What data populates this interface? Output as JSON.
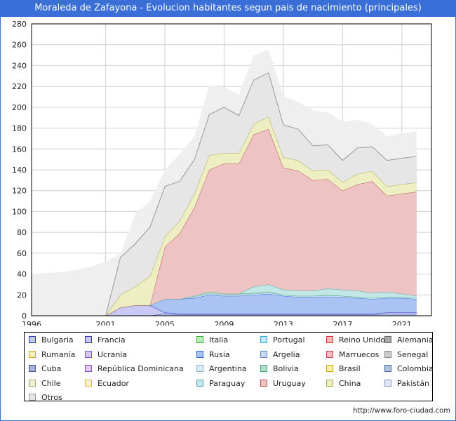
{
  "title": "Moraleda de Zafayona - Evolucion habitantes segun pais de nacimiento (principales)",
  "footer": "http://www.foro-ciudad.com",
  "chart_data": {
    "type": "area",
    "stacked": true,
    "x": [
      1996,
      1998,
      1999,
      2000,
      2001,
      2002,
      2003,
      2004,
      2005,
      2006,
      2007,
      2008,
      2009,
      2010,
      2011,
      2012,
      2013,
      2014,
      2015,
      2016,
      2017,
      2018,
      2019,
      2020,
      2021,
      2022
    ],
    "xticks": [
      1996,
      2001,
      2005,
      2009,
      2013,
      2017,
      2021
    ],
    "yticks": [
      0,
      20,
      40,
      60,
      80,
      100,
      120,
      140,
      160,
      180,
      200,
      220,
      240,
      260,
      280
    ],
    "xlim": [
      1996,
      2023
    ],
    "ylim": [
      0,
      280
    ],
    "grid": true,
    "legend_position": "bottom",
    "total_line_color": "#efefef",
    "total": [
      40,
      42,
      44,
      47,
      52,
      59,
      98,
      110,
      140,
      155,
      172,
      221,
      219,
      212,
      250,
      255,
      211,
      205,
      197,
      195,
      186,
      188,
      184,
      172,
      175,
      177
    ],
    "series": [
      {
        "name": "Bulgaria",
        "color": "#b9cbee",
        "stroke": "#3333bb",
        "values": [
          0,
          0,
          0,
          0,
          0,
          0,
          0,
          0,
          2,
          1,
          1,
          1,
          1,
          1,
          1,
          1,
          1,
          1,
          1,
          1,
          1,
          1,
          1,
          2,
          2,
          2
        ]
      },
      {
        "name": "Francia",
        "color": "#c9c9f3",
        "stroke": "#3333bb",
        "values": [
          0,
          0,
          0,
          0,
          0,
          8,
          10,
          10,
          1,
          1,
          1,
          1,
          1,
          1,
          1,
          1,
          1,
          1,
          1,
          1,
          1,
          1,
          1,
          1,
          1,
          1
        ]
      },
      {
        "name": "Italia",
        "color": "#b9eeb9",
        "stroke": "#33aa33",
        "values": [
          0,
          0,
          0,
          0,
          0,
          0,
          0,
          0,
          0,
          0,
          0,
          0,
          0,
          0,
          0,
          0,
          0,
          0,
          0,
          0,
          0,
          0,
          0,
          0,
          0,
          0
        ]
      },
      {
        "name": "Portugal",
        "color": "#c3e9f5",
        "stroke": "#33aacc",
        "values": [
          0,
          0,
          0,
          0,
          0,
          0,
          0,
          0,
          0,
          0,
          0,
          0,
          0,
          0,
          0,
          0,
          0,
          0,
          0,
          0,
          0,
          0,
          0,
          0,
          0,
          0
        ]
      },
      {
        "name": "Reino Unido",
        "color": "#f3b9b9",
        "stroke": "#cc3333",
        "values": [
          0,
          0,
          0,
          0,
          0,
          0,
          0,
          0,
          0,
          0,
          0,
          0,
          0,
          0,
          0,
          0,
          0,
          0,
          0,
          0,
          0,
          0,
          0,
          0,
          0,
          0
        ]
      },
      {
        "name": "Alemania",
        "color": "#aaaaaa",
        "stroke": "#666666",
        "values": [
          0,
          0,
          0,
          0,
          0,
          0,
          0,
          0,
          0,
          0,
          0,
          0,
          0,
          0,
          0,
          0,
          0,
          0,
          0,
          0,
          0,
          0,
          0,
          0,
          0,
          0
        ]
      },
      {
        "name": "Rumanía",
        "color": "#f8f0b9",
        "stroke": "#ccaa33",
        "values": [
          0,
          0,
          0,
          0,
          0,
          0,
          0,
          0,
          0,
          0,
          0,
          0,
          0,
          0,
          0,
          0,
          0,
          0,
          0,
          0,
          0,
          0,
          0,
          0,
          0,
          0
        ]
      },
      {
        "name": "Ucrania",
        "color": "#d5c9f3",
        "stroke": "#7755cc",
        "values": [
          0,
          0,
          0,
          0,
          0,
          0,
          0,
          0,
          0,
          0,
          0,
          0,
          0,
          0,
          0,
          0,
          0,
          0,
          0,
          0,
          0,
          0,
          0,
          0,
          0,
          0
        ]
      },
      {
        "name": "Rusia",
        "color": "#aac3f3",
        "stroke": "#3366dd",
        "values": [
          0,
          0,
          0,
          0,
          0,
          0,
          0,
          0,
          13,
          14,
          15,
          18,
          17,
          17,
          18,
          19,
          17,
          16,
          16,
          16,
          16,
          15,
          14,
          14,
          14,
          13
        ]
      },
      {
        "name": "Argelia",
        "color": "#c9d9f3",
        "stroke": "#6688cc",
        "values": [
          0,
          0,
          0,
          0,
          0,
          0,
          0,
          0,
          0,
          0,
          0,
          0,
          0,
          0,
          0,
          0,
          0,
          0,
          0,
          0,
          0,
          0,
          0,
          0,
          0,
          0
        ]
      },
      {
        "name": "Marruecos",
        "color": "#f0bfc5",
        "stroke": "#cc4444",
        "values": [
          0,
          0,
          0,
          0,
          0,
          0,
          0,
          0,
          0,
          0,
          0,
          0,
          0,
          0,
          0,
          0,
          0,
          0,
          0,
          0,
          0,
          0,
          0,
          0,
          0,
          0
        ]
      },
      {
        "name": "Senegal",
        "color": "#cccccc",
        "stroke": "#888888",
        "values": [
          0,
          0,
          0,
          0,
          0,
          0,
          0,
          0,
          0,
          0,
          0,
          0,
          0,
          0,
          0,
          0,
          0,
          0,
          0,
          0,
          0,
          0,
          0,
          0,
          0,
          0
        ]
      },
      {
        "name": "Cuba",
        "color": "#a6b3d4",
        "stroke": "#445599",
        "values": [
          0,
          0,
          0,
          0,
          0,
          0,
          0,
          0,
          0,
          0,
          0,
          0,
          0,
          0,
          0,
          0,
          0,
          0,
          0,
          0,
          0,
          0,
          0,
          0,
          0,
          0
        ]
      },
      {
        "name": "República Dominicana",
        "color": "#d9c9f3",
        "stroke": "#8855cc",
        "values": [
          0,
          0,
          0,
          0,
          0,
          0,
          0,
          0,
          0,
          0,
          0,
          0,
          0,
          0,
          0,
          0,
          0,
          0,
          0,
          0,
          0,
          0,
          0,
          0,
          0,
          0
        ]
      },
      {
        "name": "Argentina",
        "color": "#ddeef8",
        "stroke": "#88aacc",
        "values": [
          0,
          0,
          0,
          0,
          0,
          0,
          0,
          0,
          0,
          0,
          1,
          1,
          1,
          1,
          1,
          1,
          1,
          1,
          1,
          1,
          1,
          1,
          1,
          1,
          1,
          1
        ]
      },
      {
        "name": "Bolivia",
        "color": "#b3dcc9",
        "stroke": "#44aa77",
        "values": [
          0,
          0,
          0,
          0,
          0,
          0,
          0,
          0,
          0,
          0,
          1,
          2,
          1,
          1,
          1,
          1,
          0,
          0,
          0,
          1,
          0,
          0,
          0,
          0,
          0,
          0
        ]
      },
      {
        "name": "Brasil",
        "color": "#fbf0a6",
        "stroke": "#ccaa00",
        "values": [
          0,
          0,
          0,
          0,
          0,
          0,
          0,
          0,
          0,
          0,
          0,
          0,
          0,
          0,
          0,
          0,
          0,
          0,
          0,
          0,
          0,
          0,
          0,
          0,
          0,
          0
        ]
      },
      {
        "name": "Colombia",
        "color": "#b3c3dc",
        "stroke": "#4466aa",
        "values": [
          0,
          0,
          0,
          0,
          0,
          0,
          0,
          0,
          0,
          0,
          0,
          0,
          0,
          0,
          0,
          0,
          0,
          0,
          0,
          0,
          0,
          0,
          0,
          0,
          0,
          0
        ]
      },
      {
        "name": "Chile",
        "color": "#eeeed5",
        "stroke": "#aaaa66",
        "values": [
          0,
          0,
          0,
          0,
          0,
          0,
          0,
          0,
          0,
          0,
          0,
          0,
          0,
          0,
          0,
          0,
          0,
          0,
          0,
          0,
          0,
          0,
          0,
          0,
          0,
          0
        ]
      },
      {
        "name": "Ecuador",
        "color": "#fbf3c3",
        "stroke": "#ddbb33",
        "values": [
          0,
          0,
          0,
          0,
          0,
          0,
          0,
          0,
          0,
          0,
          0,
          0,
          0,
          0,
          0,
          0,
          0,
          0,
          0,
          0,
          0,
          0,
          0,
          0,
          0,
          0
        ]
      },
      {
        "name": "Paraguay",
        "color": "#c3e6e6",
        "stroke": "#55aaaa",
        "values": [
          0,
          0,
          0,
          0,
          0,
          0,
          0,
          0,
          0,
          0,
          0,
          0,
          0,
          0,
          6,
          7,
          5,
          5,
          5,
          6,
          6,
          6,
          5,
          5,
          3,
          2
        ]
      },
      {
        "name": "Uruguay",
        "color": "#eec3c3",
        "stroke": "#bb5555",
        "values": [
          0,
          0,
          0,
          0,
          0,
          0,
          0,
          0,
          50,
          63,
          85,
          117,
          125,
          125,
          146,
          149,
          117,
          115,
          106,
          105,
          95,
          102,
          107,
          92,
          96,
          100
        ]
      },
      {
        "name": "China",
        "color": "#eeeec3",
        "stroke": "#aaaa55",
        "values": [
          0,
          0,
          0,
          0,
          0,
          12,
          18,
          28,
          10,
          12,
          13,
          14,
          10,
          10,
          10,
          12,
          10,
          10,
          9,
          9,
          8,
          10,
          10,
          9,
          9,
          9
        ]
      },
      {
        "name": "Pakistán",
        "color": "#e0e8f3",
        "stroke": "#8899bb",
        "values": [
          0,
          0,
          0,
          0,
          0,
          0,
          0,
          0,
          0,
          0,
          0,
          0,
          0,
          0,
          0,
          0,
          0,
          0,
          0,
          0,
          0,
          0,
          0,
          0,
          0,
          0
        ]
      },
      {
        "name": "Otros",
        "color": "#e6e6e6",
        "stroke": "#999999",
        "values": [
          0,
          0,
          0,
          0,
          0,
          36,
          41,
          47,
          48,
          38,
          33,
          39,
          44,
          36,
          42,
          42,
          31,
          30,
          24,
          24,
          21,
          25,
          23,
          25,
          25,
          25
        ]
      }
    ]
  }
}
